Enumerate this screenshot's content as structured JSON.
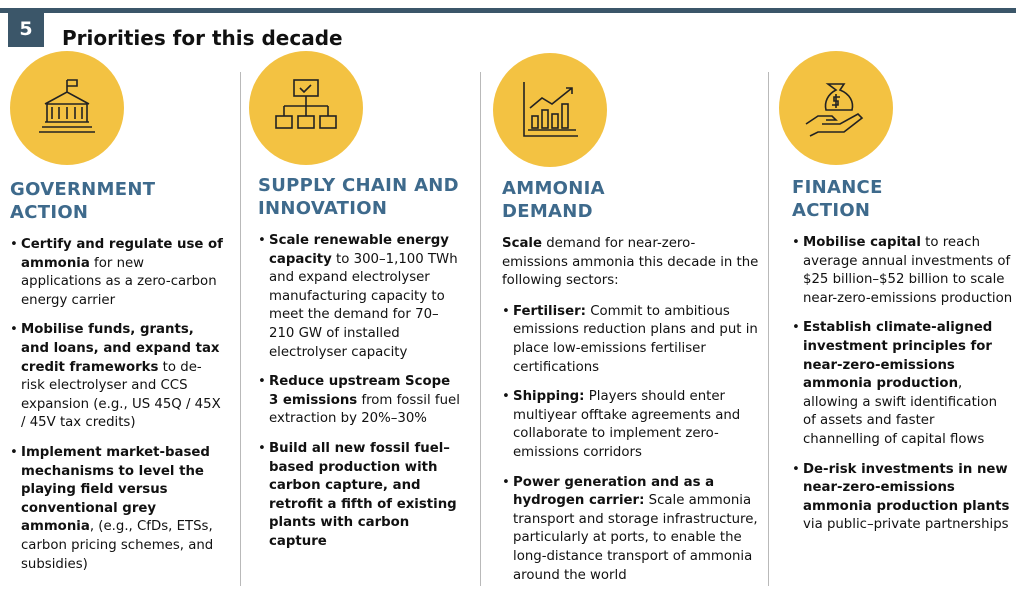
{
  "header": {
    "number": "5",
    "title": "Priorities for this decade"
  },
  "columns": [
    {
      "heading": "GOVERNMENT ACTION",
      "bullets": [
        {
          "bold": "Certify and regulate use of ammonia",
          "text": " for new applications as a zero-carbon energy carrier"
        },
        {
          "bold": "Mobilise funds, grants, and loans, and expand tax credit frameworks",
          "text": " to de-risk electrolyser and CCS expansion (e.g., US 45Q / 45X / 45V tax credits)"
        },
        {
          "bold": "Implement market-based mechanisms to level the playing field versus conventional grey ammonia",
          "text": ", (e.g., CfDs, ETSs, carbon pricing schemes, and subsidies)"
        }
      ]
    },
    {
      "heading": "SUPPLY CHAIN AND INNOVATION",
      "bullets": [
        {
          "bold": "Scale renewable energy capacity",
          "text": " to 300–1,100 TWh and expand electrolyser manufacturing capacity to meet the demand for 70–210 GW of installed electrolyser capacity"
        },
        {
          "bold": "Reduce upstream Scope 3 emissions",
          "text": " from fossil fuel extraction by 20%–30%"
        },
        {
          "bold": "Build all new fossil fuel–based production with carbon capture, and retrofit a fifth of existing plants with carbon capture"
        }
      ]
    },
    {
      "heading": "AMMONIA DEMAND",
      "intro": {
        "bold": "Scale",
        "text": " demand for near-zero-emissions ammonia this decade in the following sectors:"
      },
      "bullets": [
        {
          "bold": "Fertiliser:",
          "text": " Commit to ambitious emissions reduction plans and put in place low-emissions fertiliser certifications"
        },
        {
          "bold": "Shipping:",
          "text": " Players should enter multiyear offtake agreements and collaborate to implement zero-emissions corridors"
        },
        {
          "bold": "Power generation and as a hydrogen carrier:",
          "text": " Scale ammonia transport and storage infrastructure, particularly at ports, to enable the long-distance transport of ammonia around the world"
        }
      ]
    },
    {
      "heading": "FINANCE ACTION",
      "bullets": [
        {
          "bold": "Mobilise capital",
          "text": " to reach average annual investments of $25 billion–$52 billion to scale near-zero-emissions production"
        },
        {
          "bold": "Establish climate-aligned investment principles for near-zero-emissions ammonia production",
          "text": ", allowing a swift identification of assets and faster channelling of capital flows"
        },
        {
          "bold": "De-risk investments in new near-zero-emissions ammonia production plants",
          "text": " via public–private partnerships"
        }
      ]
    }
  ]
}
